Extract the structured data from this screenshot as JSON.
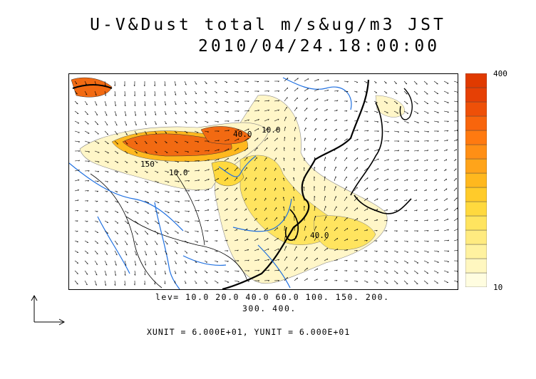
{
  "header": {
    "title": "U-V&Dust total m/s&ug/m3 JST",
    "datetime": "2010/04/24.18:00:00"
  },
  "colorbar": {
    "max_label": "400",
    "min_label": "10",
    "colors": [
      "#fffde0",
      "#fff7c0",
      "#fff2a0",
      "#ffeb80",
      "#ffe45f",
      "#ffd93e",
      "#ffcb2a",
      "#ffb81e",
      "#ffa41a",
      "#ff8f15",
      "#ff7a10",
      "#f8650c",
      "#ee5008",
      "#e64005",
      "#e03a00"
    ]
  },
  "map": {
    "contour_labels": [
      "40.0",
      "10.0",
      "150",
      "10.0",
      "40.0"
    ],
    "land_color": "#ffffff",
    "river_color": "#1e6fe0",
    "dust_colors": {
      "low": "#fff6c8",
      "mid": "#ffe45f",
      "high": "#ff6a10"
    }
  },
  "footer": {
    "levels_line1": "lev= 10.0 20.0 40.0 60.0 100. 150. 200.",
    "levels_line2": "300. 400.",
    "units": "XUNIT = 6.000E+01, YUNIT = 6.000E+01"
  }
}
